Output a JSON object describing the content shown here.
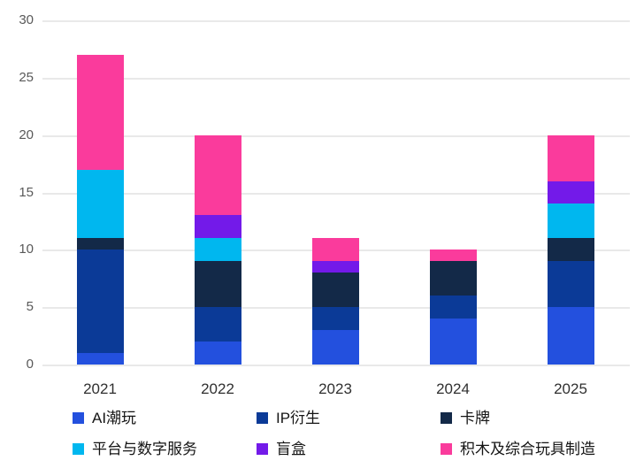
{
  "chart_data": {
    "type": "bar",
    "stacked": true,
    "title": "",
    "xlabel": "",
    "ylabel": "",
    "categories": [
      "2021",
      "2022",
      "2023",
      "2024",
      "2025"
    ],
    "series": [
      {
        "name": "AI潮玩",
        "color": "#2350DE",
        "values": [
          1,
          2,
          3,
          4,
          5
        ]
      },
      {
        "name": "IP衍生",
        "color": "#0B3A97",
        "values": [
          9,
          3,
          2,
          2,
          4
        ]
      },
      {
        "name": "卡牌",
        "color": "#132948",
        "values": [
          1,
          4,
          3,
          3,
          2
        ]
      },
      {
        "name": "平台与数字服务",
        "color": "#00B7EF",
        "values": [
          6,
          2,
          0,
          0,
          3
        ]
      },
      {
        "name": "盲盒",
        "color": "#731AE9",
        "values": [
          0,
          2,
          1,
          0,
          2
        ]
      },
      {
        "name": "积木及综合玩具制造",
        "color": "#FA3B9C",
        "values": [
          10,
          7,
          2,
          1,
          4
        ]
      }
    ],
    "totals": [
      27,
      20,
      11,
      10,
      20
    ],
    "y_ticks": [
      0,
      5,
      10,
      15,
      20,
      25,
      30
    ],
    "ylim": [
      0,
      30
    ],
    "grid": true,
    "legend_position": "bottom"
  },
  "colors": {
    "background": "#ffffff",
    "gridline": "#e9e9e9",
    "y_tick_text": "#595959",
    "x_tick_text": "#303030",
    "legend_text": "#141414"
  }
}
